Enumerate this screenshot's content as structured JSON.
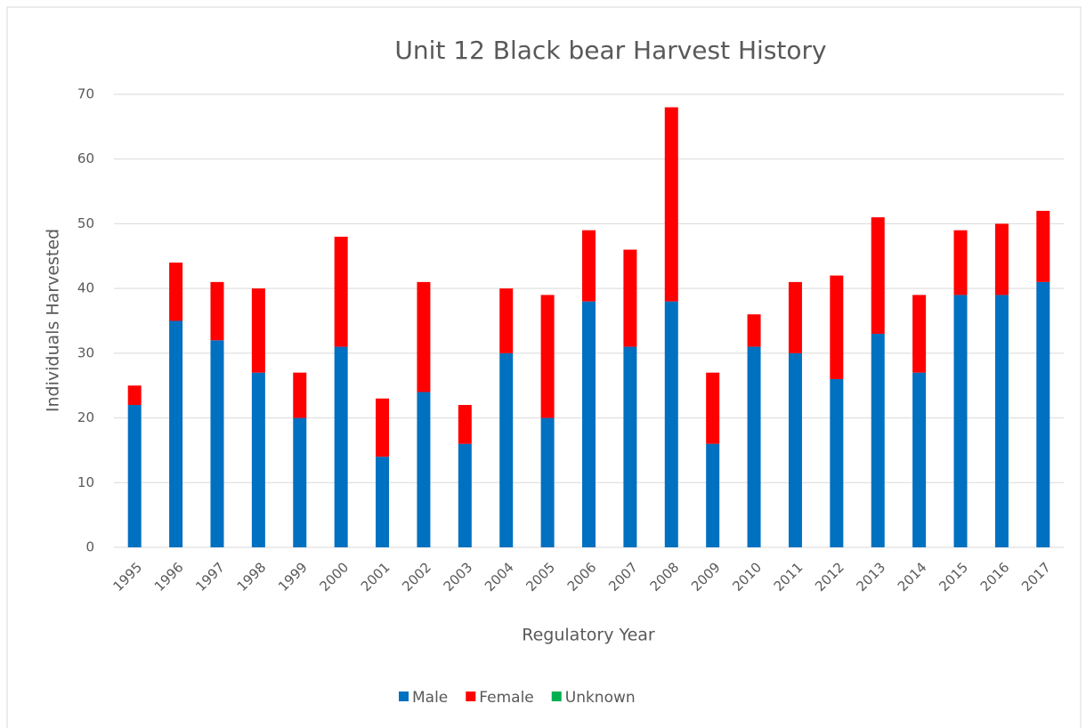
{
  "chart_data": {
    "type": "stacked_bar",
    "title": "Unit 12 Black bear Harvest History",
    "x_label": "Regulatory Year",
    "y_label": "Individuals Harvested",
    "categories": [
      "1995",
      "1996",
      "1997",
      "1998",
      "1999",
      "2000",
      "2001",
      "2002",
      "2003",
      "2004",
      "2005",
      "2006",
      "2007",
      "2008",
      "2009",
      "2010",
      "2011",
      "2012",
      "2013",
      "2014",
      "2015",
      "2016",
      "2017"
    ],
    "series": [
      {
        "name": "Male",
        "color": "#0070c0",
        "values": [
          22,
          35,
          32,
          27,
          20,
          31,
          14,
          24,
          16,
          30,
          20,
          38,
          31,
          38,
          16,
          31,
          30,
          26,
          33,
          27,
          39,
          39,
          41
        ]
      },
      {
        "name": "Female",
        "color": "#ff0000",
        "values": [
          3,
          9,
          9,
          13,
          7,
          17,
          9,
          17,
          6,
          10,
          19,
          11,
          15,
          30,
          11,
          5,
          11,
          16,
          18,
          12,
          10,
          11,
          11
        ]
      },
      {
        "name": "Unknown",
        "color": "#00b050",
        "values": [
          0,
          0,
          0,
          0,
          0,
          0,
          0,
          0,
          0,
          0,
          0,
          0,
          0,
          0,
          0,
          0,
          0,
          0,
          0,
          0,
          0,
          0,
          0
        ]
      }
    ],
    "ylim": [
      0,
      70
    ],
    "yticks": [
      0,
      10,
      20,
      30,
      40,
      50,
      60,
      70
    ],
    "grid": true,
    "legend": "bottom"
  }
}
